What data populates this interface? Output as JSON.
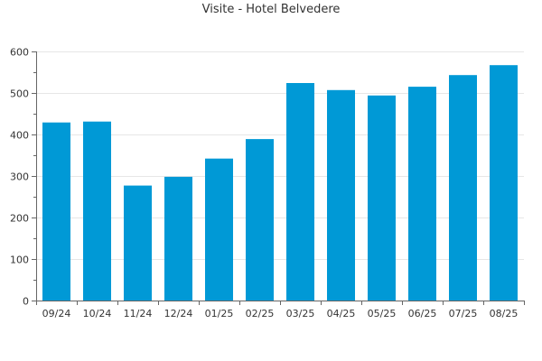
{
  "chart_data": {
    "type": "bar",
    "title": "Visite - Hotel Belvedere",
    "xlabel": "",
    "ylabel": "",
    "categories": [
      "09/24",
      "10/24",
      "11/24",
      "12/24",
      "01/25",
      "02/25",
      "03/25",
      "04/25",
      "05/25",
      "06/25",
      "07/25",
      "08/25"
    ],
    "values": [
      429,
      431,
      277,
      298,
      342,
      389,
      524,
      507,
      494,
      515,
      543,
      567
    ],
    "ylim": [
      0,
      600
    ],
    "yticks": [
      0,
      100,
      200,
      300,
      400,
      500,
      600
    ],
    "grid": true,
    "legend": "none",
    "colors": {
      "bar": "#0099d6",
      "grid": "#e6e6e6",
      "axis": "#666666",
      "text": "#333333"
    }
  }
}
